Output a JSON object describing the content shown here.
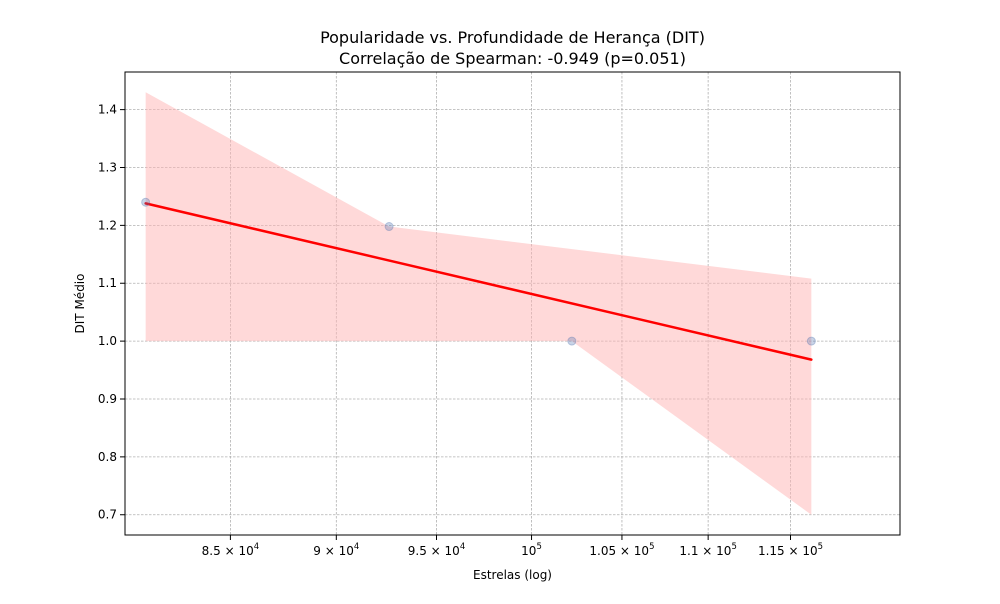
{
  "chart_data": {
    "type": "scatter",
    "title": "Popularidade vs. Profundidade de Herança (DIT)",
    "subtitle": "Correlação de Spearman: -0.949 (p=0.051)",
    "xlabel": "Estrelas (log)",
    "ylabel": "DIT Médio",
    "x_scale": "log",
    "xlim": [
      80300,
      122000
    ],
    "ylim": [
      0.665,
      1.465
    ],
    "grid": true,
    "x_ticks": [
      {
        "value": 85000,
        "mantissa": "8.5",
        "base": "10",
        "exp": "4"
      },
      {
        "value": 90000,
        "mantissa": "9",
        "base": "10",
        "exp": "4"
      },
      {
        "value": 95000,
        "mantissa": "9.5",
        "base": "10",
        "exp": "4"
      },
      {
        "value": 100000,
        "mantissa": "",
        "base": "10",
        "exp": "5"
      },
      {
        "value": 105000,
        "mantissa": "1.05",
        "base": "10",
        "exp": "5"
      },
      {
        "value": 110000,
        "mantissa": "1.1",
        "base": "10",
        "exp": "5"
      },
      {
        "value": 115000,
        "mantissa": "1.15",
        "base": "10",
        "exp": "5"
      }
    ],
    "y_ticks": [
      {
        "value": 0.7,
        "label": "0.7"
      },
      {
        "value": 0.8,
        "label": "0.8"
      },
      {
        "value": 0.9,
        "label": "0.9"
      },
      {
        "value": 1.0,
        "label": "1.0"
      },
      {
        "value": 1.1,
        "label": "1.1"
      },
      {
        "value": 1.2,
        "label": "1.2"
      },
      {
        "value": 1.3,
        "label": "1.3"
      },
      {
        "value": 1.4,
        "label": "1.4"
      }
    ],
    "points": [
      {
        "x": 81200,
        "y": 1.24
      },
      {
        "x": 92600,
        "y": 1.198
      },
      {
        "x": 102200,
        "y": 1.0
      },
      {
        "x": 116300,
        "y": 1.0
      }
    ],
    "regression_line": {
      "x": [
        81200,
        116300
      ],
      "y": [
        1.238,
        0.968
      ]
    },
    "confidence_band": {
      "upper": [
        {
          "x": 81200,
          "y": 1.43
        },
        {
          "x": 92600,
          "y": 1.198
        },
        {
          "x": 116300,
          "y": 1.108
        }
      ],
      "lower": [
        {
          "x": 81200,
          "y": 1.0
        },
        {
          "x": 102200,
          "y": 1.0
        },
        {
          "x": 116300,
          "y": 0.7
        }
      ]
    },
    "colors": {
      "point": "#4c72b0",
      "line": "#ff0000",
      "band": "#ffb3b3"
    }
  }
}
